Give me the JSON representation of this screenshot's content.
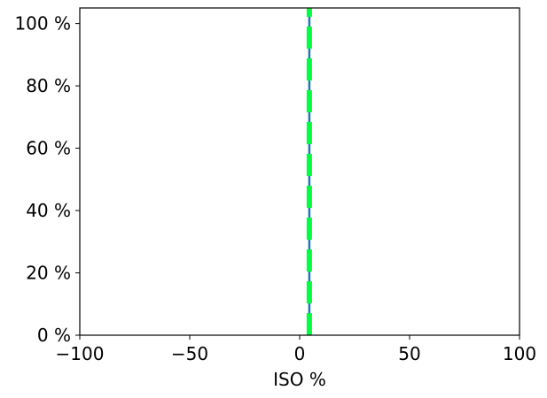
{
  "chart_data": {
    "type": "line",
    "title": "",
    "xlabel": "ISO %",
    "ylabel": "",
    "xlim": [
      -100,
      100
    ],
    "ylim": [
      0,
      105
    ],
    "grid": false,
    "x_ticks": [
      -100,
      -50,
      0,
      50,
      100
    ],
    "x_tick_labels": [
      "−100",
      "−50",
      "0",
      "50",
      "100"
    ],
    "y_ticks": [
      0,
      20,
      40,
      60,
      80,
      100
    ],
    "y_tick_labels": [
      "0 %",
      "20 %",
      "40 %",
      "60 %",
      "80 %",
      "100 %"
    ],
    "series": [
      {
        "style": "solid",
        "color": "#1f77b4",
        "x": [
          4.4,
          4.4
        ],
        "y": [
          0,
          105
        ]
      },
      {
        "style": "dashed",
        "color": "#00ff40",
        "x": [
          4.4,
          4.4
        ],
        "y": [
          0,
          105
        ]
      }
    ]
  }
}
